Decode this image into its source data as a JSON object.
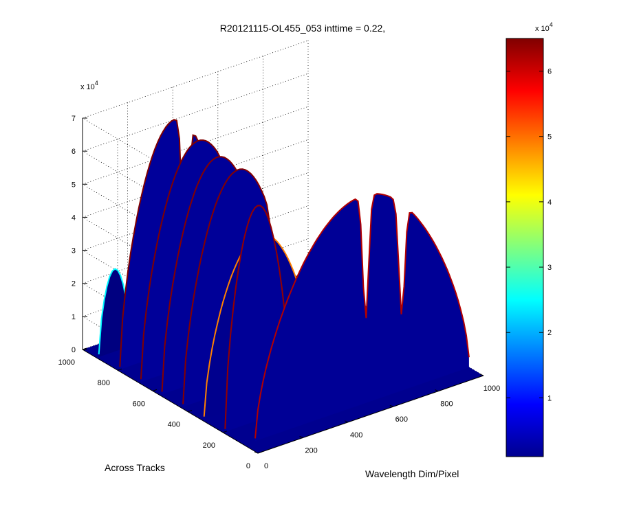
{
  "chart_data": {
    "type": "surface3d",
    "title": "R20121115-OL455_053 inttime = 0.22,",
    "xlabel": "Wavelength Dim/Pixel",
    "ylabel": "Across Tracks",
    "zlabel": "",
    "x_ticks": [
      "0",
      "200",
      "400",
      "600",
      "800",
      "1000"
    ],
    "y_ticks": [
      "0",
      "200",
      "400",
      "600",
      "800",
      "1000"
    ],
    "z_ticks": [
      "0",
      "1",
      "2",
      "3",
      "4",
      "5",
      "6",
      "7"
    ],
    "z_multiplier": "x 10",
    "z_multiplier_exp": "4",
    "xlim": [
      0,
      1000
    ],
    "ylim": [
      0,
      1000
    ],
    "zlim": [
      0,
      70000
    ],
    "grid": true,
    "colormap": "jet",
    "colorbar": {
      "ticks": [
        "1",
        "2",
        "3",
        "4",
        "5",
        "6"
      ],
      "multiplier": "x 10",
      "multiplier_exp": "4",
      "range": [
        1000,
        65000
      ]
    },
    "series": [
      {
        "y": 80,
        "x_start": 50,
        "x_end": 1000,
        "peak": 63000,
        "notches": [
          [
            540,
            0.4
          ],
          [
            700,
            0.4
          ]
        ]
      },
      {
        "y": 200,
        "x_start": 10,
        "x_end": 300,
        "peak": 65000,
        "notches": []
      },
      {
        "y": 320,
        "x_start": 10,
        "x_end": 500,
        "peak": 50000,
        "notches": [
          [
            480,
            0.9
          ]
        ]
      },
      {
        "y": 440,
        "x_start": 10,
        "x_end": 500,
        "peak": 66000,
        "notches": [
          [
            420,
            0.5
          ]
        ]
      },
      {
        "y": 560,
        "x_start": 10,
        "x_end": 500,
        "peak": 66000,
        "notches": [
          [
            410,
            0.35
          ]
        ]
      },
      {
        "y": 680,
        "x_start": 10,
        "x_end": 520,
        "peak": 67000,
        "notches": [
          [
            400,
            0.25
          ],
          [
            520,
            0.5
          ]
        ]
      },
      {
        "y": 800,
        "x_start": 10,
        "x_end": 500,
        "peak": 70000,
        "notches": [
          [
            300,
            0.3
          ]
        ]
      },
      {
        "y": 920,
        "x_start": 10,
        "x_end": 150,
        "peak": 25000,
        "notches": []
      }
    ]
  }
}
